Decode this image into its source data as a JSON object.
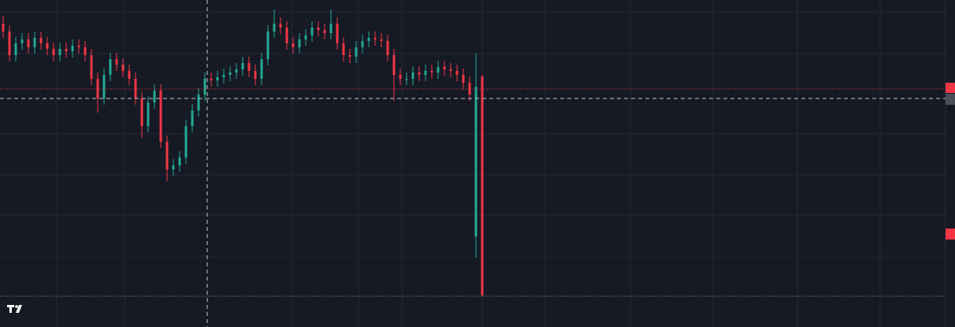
{
  "chart_data": {
    "type": "candlestick",
    "ylim": [
      0,
      415
    ],
    "up_color": "#22ab94",
    "down_color": "#f23645",
    "open": [
      385,
      375,
      345,
      360,
      365,
      355,
      367,
      360,
      353,
      345,
      353,
      350,
      357,
      355,
      345,
      315,
      290,
      320,
      340,
      333,
      325,
      315,
      290,
      255,
      285,
      300,
      235,
      200,
      205,
      215,
      255,
      275,
      295,
      315,
      313,
      317,
      320,
      323,
      327,
      335,
      325,
      315,
      340,
      375,
      385,
      380,
      360,
      355,
      365,
      370,
      380,
      377,
      373,
      385,
      360,
      345,
      343,
      355,
      363,
      367,
      365,
      363,
      345,
      320,
      315,
      315,
      323,
      320,
      325,
      323,
      330,
      327,
      325,
      320,
      310,
      115,
      318
    ],
    "high": [
      395,
      383,
      368,
      373,
      373,
      375,
      375,
      368,
      361,
      361,
      361,
      365,
      365,
      363,
      353,
      323,
      328,
      348,
      348,
      341,
      333,
      323,
      298,
      293,
      308,
      308,
      243,
      213,
      223,
      263,
      283,
      303,
      323,
      323,
      325,
      328,
      331,
      335,
      343,
      343,
      333,
      348,
      383,
      403,
      393,
      388,
      368,
      373,
      378,
      388,
      388,
      385,
      403,
      393,
      368,
      353,
      363,
      371,
      375,
      375,
      373,
      371,
      353,
      328,
      323,
      331,
      331,
      333,
      333,
      338,
      338,
      335,
      333,
      328,
      318,
      347,
      320
    ],
    "low": [
      367,
      337,
      337,
      352,
      347,
      347,
      352,
      345,
      337,
      337,
      342,
      342,
      347,
      337,
      307,
      272,
      282,
      312,
      325,
      317,
      307,
      282,
      240,
      247,
      277,
      227,
      185,
      192,
      197,
      207,
      247,
      267,
      287,
      305,
      305,
      309,
      312,
      315,
      319,
      317,
      307,
      307,
      332,
      367,
      372,
      352,
      347,
      347,
      357,
      362,
      369,
      365,
      365,
      352,
      337,
      335,
      335,
      347,
      355,
      357,
      355,
      337,
      287,
      307,
      307,
      307,
      312,
      312,
      315,
      315,
      319,
      317,
      312,
      302,
      287,
      88,
      40
    ],
    "close": [
      375,
      345,
      360,
      365,
      355,
      367,
      360,
      353,
      345,
      353,
      350,
      357,
      355,
      345,
      315,
      290,
      320,
      340,
      333,
      325,
      315,
      290,
      255,
      285,
      300,
      235,
      200,
      205,
      215,
      255,
      275,
      295,
      315,
      313,
      317,
      320,
      323,
      327,
      335,
      325,
      315,
      340,
      375,
      385,
      380,
      360,
      355,
      365,
      370,
      380,
      377,
      373,
      385,
      360,
      345,
      343,
      355,
      363,
      367,
      365,
      363,
      345,
      320,
      315,
      315,
      323,
      320,
      325,
      323,
      330,
      327,
      325,
      320,
      310,
      295,
      305,
      40
    ]
  }
}
